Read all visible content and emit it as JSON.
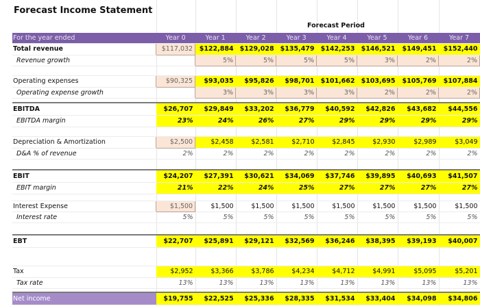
{
  "title": "Forecast Income Statement",
  "forecast_period_label": "Forecast Period",
  "header": {
    "label": "For the year ended",
    "years": [
      "Year 0",
      "Year 1",
      "Year 2",
      "Year 3",
      "Year 4",
      "Year 5",
      "Year 6",
      "Year 7"
    ]
  },
  "rows": [
    {
      "key": "revenue",
      "label": "Total revenue",
      "values": [
        "$117,032",
        "$122,884",
        "$129,028",
        "$135,479",
        "$142,253",
        "$146,521",
        "$149,451",
        "$152,440"
      ]
    },
    {
      "key": "revenue_growth",
      "label": "Revenue growth",
      "values": [
        "",
        "5%",
        "5%",
        "5%",
        "5%",
        "3%",
        "2%",
        "2%"
      ]
    },
    {
      "key": "blank1",
      "label": "",
      "values": []
    },
    {
      "key": "opex",
      "label": "Operating expenses",
      "values": [
        "$90,325",
        "$93,035",
        "$95,826",
        "$98,701",
        "$101,662",
        "$103,695",
        "$105,769",
        "$107,884"
      ]
    },
    {
      "key": "opex_growth",
      "label": "Operating expense growth",
      "values": [
        "",
        "3%",
        "3%",
        "3%",
        "3%",
        "2%",
        "2%",
        "2%"
      ]
    },
    {
      "key": "blank2",
      "label": "",
      "values": []
    },
    {
      "key": "ebitda",
      "label": "EBITDA",
      "values": [
        "$26,707",
        "$29,849",
        "$33,202",
        "$36,779",
        "$40,592",
        "$42,826",
        "$43,682",
        "$44,556"
      ]
    },
    {
      "key": "ebitda_margin",
      "label": "EBITDA margin",
      "values": [
        "23%",
        "24%",
        "26%",
        "27%",
        "29%",
        "29%",
        "29%",
        "29%"
      ]
    },
    {
      "key": "blank3",
      "label": "",
      "values": []
    },
    {
      "key": "da",
      "label": "Depreciation & Amortization",
      "values": [
        "$2,500",
        "$2,458",
        "$2,581",
        "$2,710",
        "$2,845",
        "$2,930",
        "$2,989",
        "$3,049"
      ]
    },
    {
      "key": "da_pct",
      "label": "D&A % of revenue",
      "values": [
        "2%",
        "2%",
        "2%",
        "2%",
        "2%",
        "2%",
        "2%",
        "2%"
      ]
    },
    {
      "key": "blank4",
      "label": "",
      "values": []
    },
    {
      "key": "ebit",
      "label": "EBIT",
      "values": [
        "$24,207",
        "$27,391",
        "$30,621",
        "$34,069",
        "$37,746",
        "$39,895",
        "$40,693",
        "$41,507"
      ]
    },
    {
      "key": "ebit_margin",
      "label": "EBIT margin",
      "values": [
        "21%",
        "22%",
        "24%",
        "25%",
        "27%",
        "27%",
        "27%",
        "27%"
      ]
    },
    {
      "key": "blank5",
      "label": "",
      "values": []
    },
    {
      "key": "interest",
      "label": "Interest Expense",
      "values": [
        "$1,500",
        "$1,500",
        "$1,500",
        "$1,500",
        "$1,500",
        "$1,500",
        "$1,500",
        "$1,500"
      ]
    },
    {
      "key": "interest_rate",
      "label": "Interest rate",
      "values": [
        "5%",
        "5%",
        "5%",
        "5%",
        "5%",
        "5%",
        "5%",
        "5%"
      ]
    },
    {
      "key": "blank6",
      "label": "",
      "values": []
    },
    {
      "key": "ebt",
      "label": "EBT",
      "values": [
        "$22,707",
        "$25,891",
        "$29,121",
        "$32,569",
        "$36,246",
        "$38,395",
        "$39,193",
        "$40,007"
      ]
    },
    {
      "key": "blank7",
      "label": "",
      "values": []
    },
    {
      "key": "tax",
      "label": "Tax",
      "values": [
        "$2,952",
        "$3,366",
        "$3,786",
        "$4,234",
        "$4,712",
        "$4,991",
        "$5,095",
        "$5,201"
      ]
    },
    {
      "key": "tax_rate",
      "label": "Tax rate",
      "values": [
        "13%",
        "13%",
        "13%",
        "13%",
        "13%",
        "13%",
        "13%",
        "13%"
      ]
    },
    {
      "key": "blank8",
      "label": "",
      "values": []
    },
    {
      "key": "net_income",
      "label": "Net income",
      "values": [
        "$19,755",
        "$22,525",
        "$25,336",
        "$28,335",
        "$31,534",
        "$33,404",
        "$34,098",
        "$34,806"
      ]
    }
  ],
  "colors": {
    "header_purple": "#7b5ea7",
    "highlight_yellow": "#ffff00",
    "input_peach": "#fbe5d6",
    "net_income_label": "#a58cc9"
  }
}
